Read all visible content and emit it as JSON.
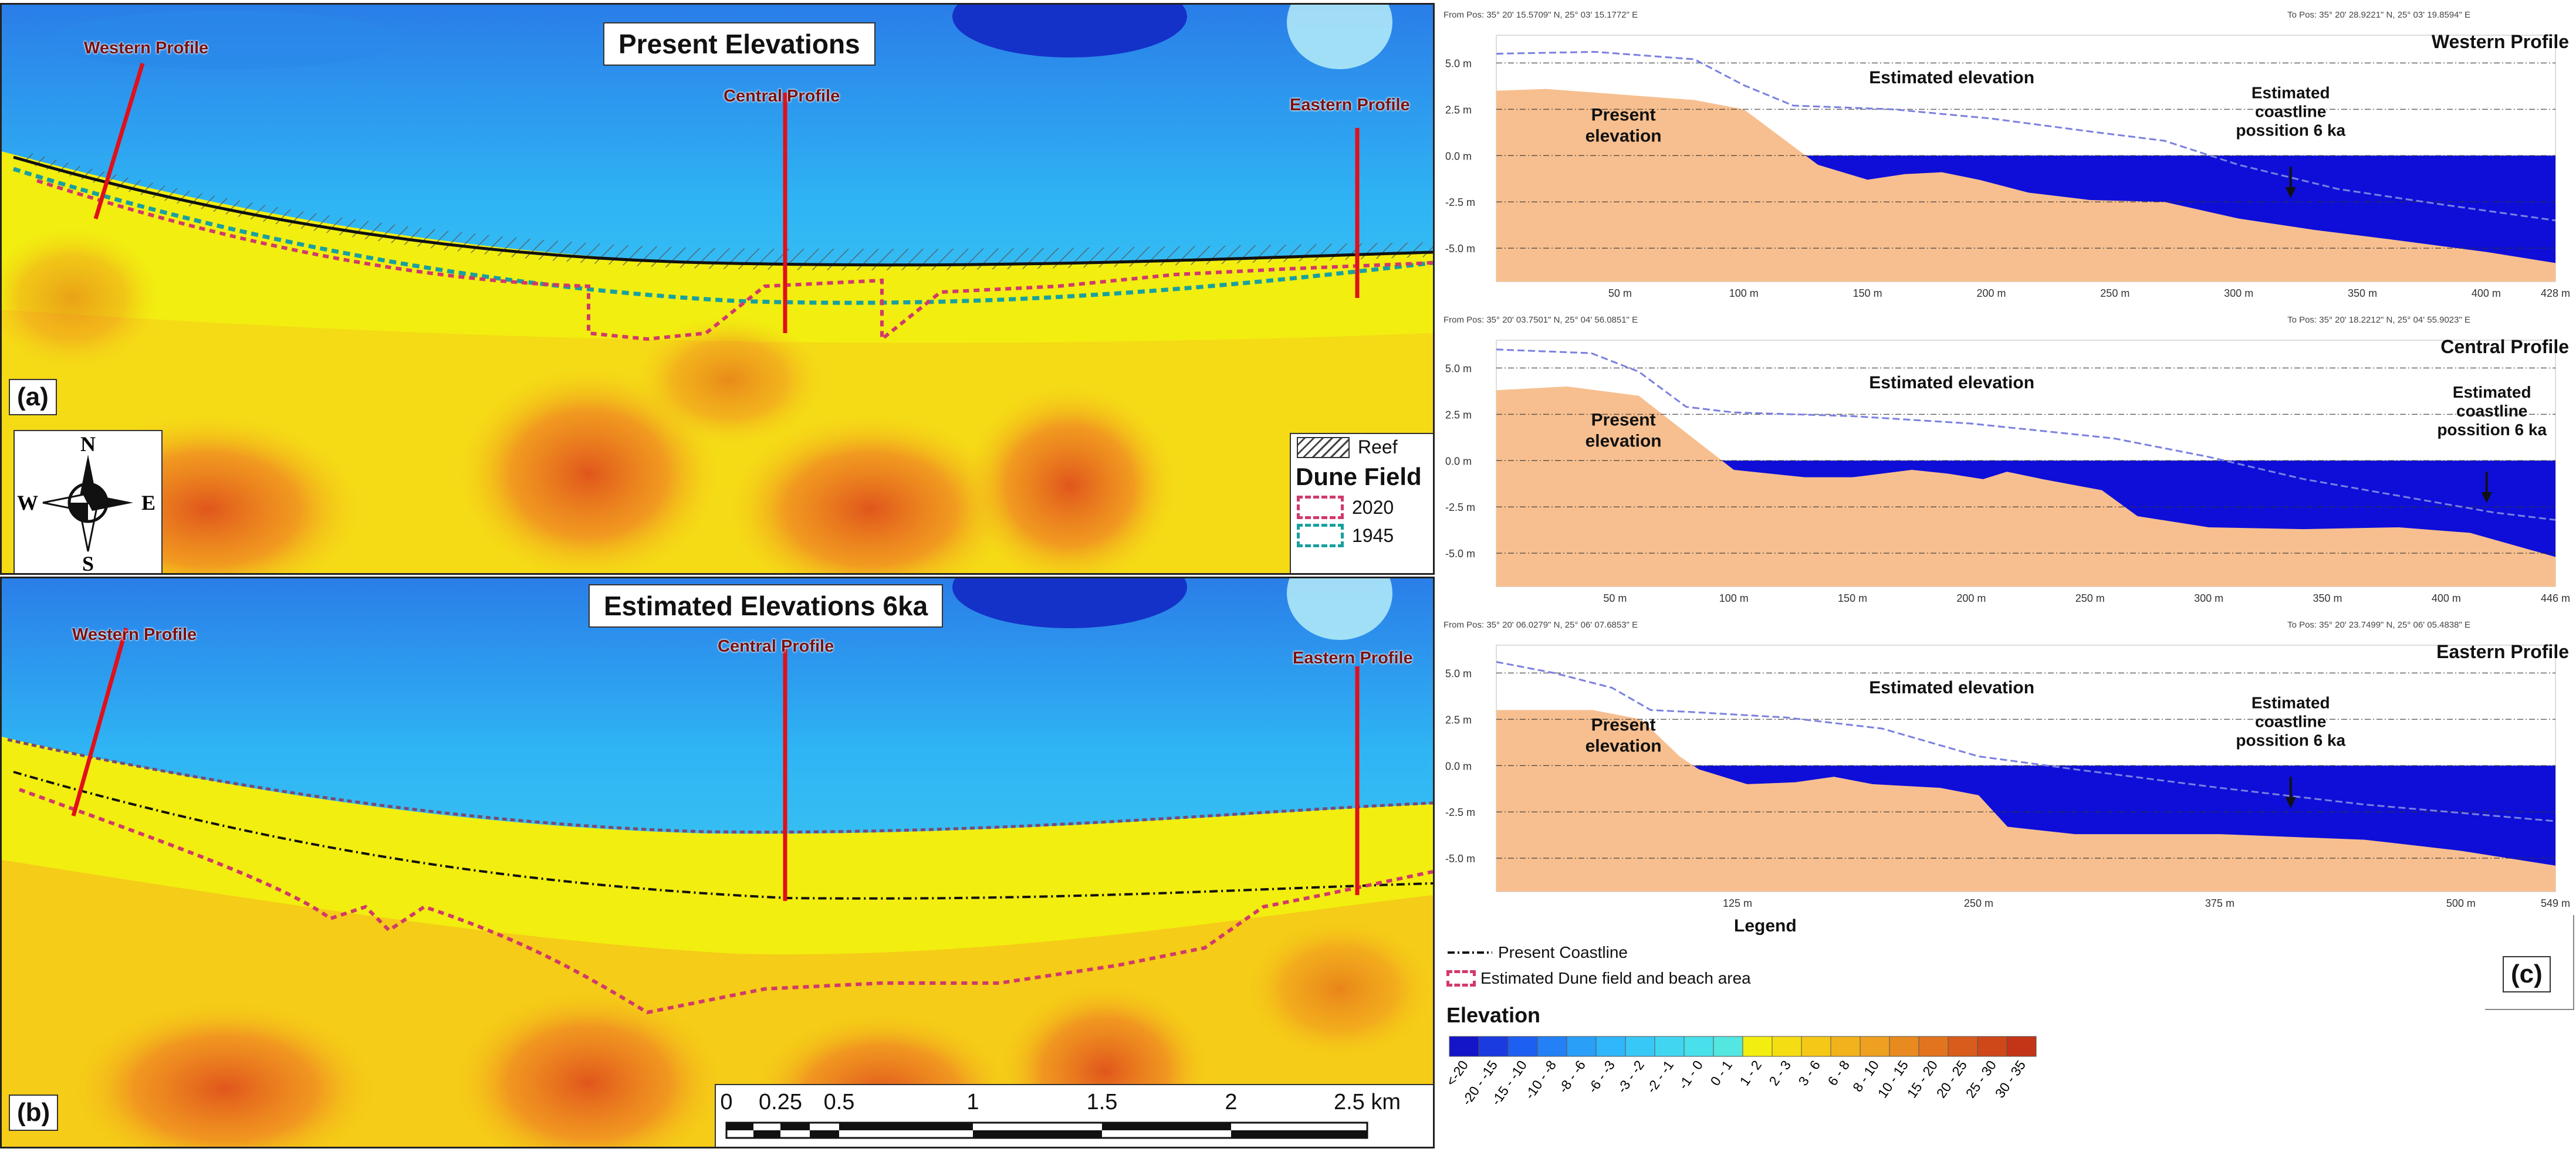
{
  "panel_a": {
    "title": "Present Elevations",
    "letter": "(a)",
    "profiles": {
      "western": "Western Profile",
      "central": "Central Profile",
      "eastern": "Eastern Profile"
    },
    "legend": {
      "reef_label": "Reef",
      "dune_field_heading": "Dune Field",
      "year_2020": "2020",
      "year_1945": "1945"
    },
    "compass": {
      "n": "N",
      "s": "S",
      "e": "E",
      "w": "W"
    }
  },
  "panel_b": {
    "title": "Estimated Elevations 6ka",
    "letter": "(b)",
    "profiles": {
      "western": "Western Profile",
      "central": "Central Profile",
      "eastern": "Eastern Profile"
    }
  },
  "scale_bar": {
    "labels": [
      "0",
      "0.25",
      "0.5",
      "1",
      "1.5",
      "2",
      "2.5 km"
    ]
  },
  "panel_c": {
    "letter": "(c)",
    "legend_title": "Legend",
    "present_coastline": "Present Coastline",
    "estimated_dune_field": "Estimated Dune field and beach area",
    "elevation_heading": "Elevation",
    "elevation_classes": [
      "<-20",
      "-20 - -15",
      "-15 - -10",
      "-10 - -8",
      "-8 - -6",
      "-6 - -3",
      "-3 - -2",
      "-2 - -1",
      "-1 - 0",
      "0 - 1",
      "1 - 2",
      "2 - 3",
      "3 - 6",
      "6 - 8",
      "8 - 10",
      "10 - 15",
      "15 - 20",
      "20 - 25",
      "25 - 30",
      "30 - 35"
    ],
    "elevation_colors": [
      "#1414c8",
      "#1a3be0",
      "#1d5ff0",
      "#2380f5",
      "#2a9ff8",
      "#30b6fa",
      "#38c8f8",
      "#40d6f2",
      "#48e0ea",
      "#54e6e0",
      "#f2ee10",
      "#f5dd14",
      "#f5c818",
      "#f2b21c",
      "#eea020",
      "#e88a20",
      "#e27420",
      "#d85c1c",
      "#ce481a",
      "#c43416"
    ]
  },
  "profiles_chart": [
    {
      "name": "Western Profile",
      "from_pos": "From Pos: 35° 20' 15.5709\" N, 25° 03' 15.1772\" E",
      "to_pos": "To Pos: 35° 20' 28.9221\" N, 25° 03' 19.8594\" E",
      "estimated_label": "Estimated elevation",
      "present_label": [
        "Present",
        "elevation"
      ],
      "coast_label": [
        "Estimated",
        "coastline",
        "possition 6 ka"
      ],
      "y_ticks": [
        "5.0 m",
        "2.5 m",
        "0.0 m",
        "-2.5 m",
        "-5.0 m"
      ],
      "x_ticks": [
        "50 m",
        "100 m",
        "150 m",
        "200 m",
        "250 m",
        "300 m",
        "350 m",
        "400 m",
        "428 m"
      ],
      "x_max": 428,
      "x_tick_values": [
        50,
        100,
        150,
        200,
        250,
        300,
        350,
        400,
        428
      ],
      "present_profile": [
        [
          0,
          3.5
        ],
        [
          20,
          3.6
        ],
        [
          60,
          3.2
        ],
        [
          80,
          3.0
        ],
        [
          100,
          2.5
        ],
        [
          110,
          1.5
        ],
        [
          120,
          0.5
        ],
        [
          130,
          -0.5
        ],
        [
          150,
          -1.3
        ],
        [
          165,
          -1.0
        ],
        [
          180,
          -0.9
        ],
        [
          195,
          -1.3
        ],
        [
          215,
          -2.0
        ],
        [
          240,
          -2.4
        ],
        [
          270,
          -2.5
        ],
        [
          300,
          -3.4
        ],
        [
          330,
          -4.0
        ],
        [
          360,
          -4.5
        ],
        [
          400,
          -5.2
        ],
        [
          428,
          -5.8
        ]
      ],
      "estimated_profile": [
        [
          0,
          5.5
        ],
        [
          40,
          5.6
        ],
        [
          80,
          5.2
        ],
        [
          100,
          3.8
        ],
        [
          120,
          2.7
        ],
        [
          160,
          2.5
        ],
        [
          200,
          2.0
        ],
        [
          240,
          1.3
        ],
        [
          270,
          0.8
        ],
        [
          300,
          -0.5
        ],
        [
          340,
          -1.8
        ],
        [
          380,
          -2.6
        ],
        [
          428,
          -3.5
        ]
      ]
    },
    {
      "name": "Central Profile",
      "from_pos": "From Pos: 35° 20' 03.7501\" N, 25° 04' 56.0851\" E",
      "to_pos": "To Pos: 35° 20' 18.2212\" N, 25° 04' 55.9023\" E",
      "estimated_label": "Estimated elevation",
      "present_label": [
        "Present",
        "elevation"
      ],
      "coast_label": [
        "Estimated",
        "coastline",
        "possition 6 ka"
      ],
      "y_ticks": [
        "5.0 m",
        "2.5 m",
        "0.0 m",
        "-2.5 m",
        "-5.0 m"
      ],
      "x_ticks": [
        "50 m",
        "100 m",
        "150 m",
        "200 m",
        "250 m",
        "300 m",
        "350 m",
        "400 m",
        "446 m"
      ],
      "x_max": 446,
      "x_tick_values": [
        50,
        100,
        150,
        200,
        250,
        300,
        350,
        400,
        446
      ],
      "present_profile": [
        [
          0,
          3.8
        ],
        [
          30,
          4.0
        ],
        [
          60,
          3.5
        ],
        [
          75,
          2.0
        ],
        [
          90,
          0.5
        ],
        [
          100,
          -0.5
        ],
        [
          130,
          -0.9
        ],
        [
          150,
          -0.9
        ],
        [
          175,
          -0.5
        ],
        [
          190,
          -0.7
        ],
        [
          205,
          -1.0
        ],
        [
          215,
          -0.6
        ],
        [
          230,
          -1.0
        ],
        [
          255,
          -1.6
        ],
        [
          270,
          -3.0
        ],
        [
          300,
          -3.6
        ],
        [
          340,
          -3.7
        ],
        [
          380,
          -3.6
        ],
        [
          410,
          -3.9
        ],
        [
          446,
          -5.2
        ]
      ],
      "estimated_profile": [
        [
          0,
          6.0
        ],
        [
          40,
          5.8
        ],
        [
          60,
          4.8
        ],
        [
          80,
          2.9
        ],
        [
          100,
          2.6
        ],
        [
          150,
          2.4
        ],
        [
          200,
          2.0
        ],
        [
          260,
          1.2
        ],
        [
          300,
          0.2
        ],
        [
          340,
          -1.0
        ],
        [
          380,
          -1.9
        ],
        [
          420,
          -2.8
        ],
        [
          446,
          -3.2
        ]
      ]
    },
    {
      "name": "Eastern Profile",
      "from_pos": "From Pos: 35° 20' 06.0279\" N, 25° 06' 07.6853\" E",
      "to_pos": "To Pos: 35° 20' 23.7499\" N, 25° 06' 05.4838\" E",
      "estimated_label": "Estimated elevation",
      "present_label": [
        "Present",
        "elevation"
      ],
      "coast_label": [
        "Estimated",
        "coastline",
        "possition 6 ka"
      ],
      "y_ticks": [
        "5.0 m",
        "2.5 m",
        "0.0 m",
        "-2.5 m",
        "-5.0 m"
      ],
      "x_ticks": [
        "125 m",
        "250 m",
        "375 m",
        "500 m",
        "549 m"
      ],
      "x_max": 549,
      "x_tick_values": [
        125,
        250,
        375,
        500,
        549
      ],
      "present_profile": [
        [
          0,
          3.0
        ],
        [
          50,
          3.0
        ],
        [
          75,
          2.5
        ],
        [
          95,
          0.5
        ],
        [
          105,
          -0.2
        ],
        [
          130,
          -1.0
        ],
        [
          155,
          -0.9
        ],
        [
          175,
          -0.6
        ],
        [
          195,
          -1.0
        ],
        [
          230,
          -1.2
        ],
        [
          250,
          -1.6
        ],
        [
          265,
          -3.3
        ],
        [
          300,
          -3.7
        ],
        [
          375,
          -3.7
        ],
        [
          450,
          -4.0
        ],
        [
          500,
          -4.6
        ],
        [
          549,
          -5.4
        ]
      ],
      "estimated_profile": [
        [
          0,
          5.6
        ],
        [
          30,
          5.0
        ],
        [
          60,
          4.2
        ],
        [
          80,
          3.0
        ],
        [
          100,
          2.9
        ],
        [
          150,
          2.6
        ],
        [
          200,
          2.0
        ],
        [
          250,
          0.5
        ],
        [
          300,
          -0.2
        ],
        [
          375,
          -1.2
        ],
        [
          450,
          -2.1
        ],
        [
          549,
          -3.0
        ]
      ]
    }
  ]
}
